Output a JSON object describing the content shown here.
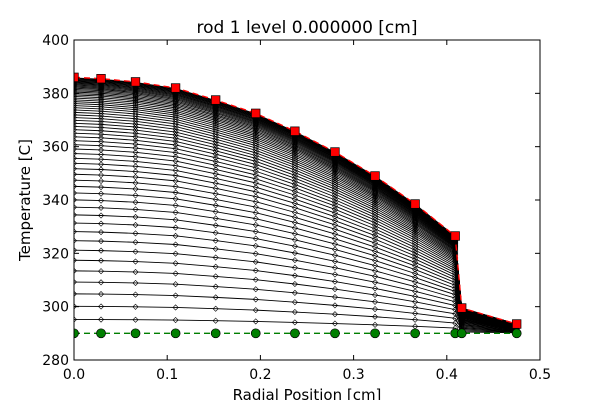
{
  "chart_data": {
    "type": "line",
    "title": "rod 1 level 0.000000 [cm]",
    "xlabel": "Radial Position [cm]",
    "ylabel": "Temperature [C]",
    "xlim": [
      0.0,
      0.5
    ],
    "ylim": [
      280,
      400
    ],
    "xticks": [
      0.0,
      0.1,
      0.2,
      0.3,
      0.4,
      0.5
    ],
    "xtick_labels": [
      "0.0",
      "0.1",
      "0.2",
      "0.3",
      "0.4",
      "0.5"
    ],
    "yticks": [
      280,
      300,
      320,
      340,
      360,
      380,
      400
    ],
    "ytick_labels": [
      "280",
      "300",
      "320",
      "340",
      "360",
      "380",
      "400"
    ],
    "grid": false,
    "x": [
      0.0,
      0.029,
      0.066,
      0.109,
      0.152,
      0.195,
      0.237,
      0.28,
      0.323,
      0.366,
      0.409,
      0.416,
      0.475
    ],
    "series": [
      {
        "style": "initial-green-circles-dashed",
        "values": [
          290.0,
          290.0,
          290.0,
          290.0,
          290.0,
          290.0,
          290.0,
          290.0,
          290.0,
          290.0,
          290.0,
          290.0,
          290.0
        ]
      },
      {
        "style": "final-red-squares-dashed",
        "values": [
          386.0,
          385.5,
          384.3,
          382.0,
          377.5,
          372.5,
          365.8,
          358.0,
          349.0,
          338.5,
          326.5,
          299.5,
          293.5
        ]
      }
    ],
    "transient_family": {
      "style": "black-lines-diamond-markers",
      "count": 60
    },
    "colors": {
      "initial": "#007f00",
      "final": "#ff0000",
      "transient": "#000000"
    }
  }
}
